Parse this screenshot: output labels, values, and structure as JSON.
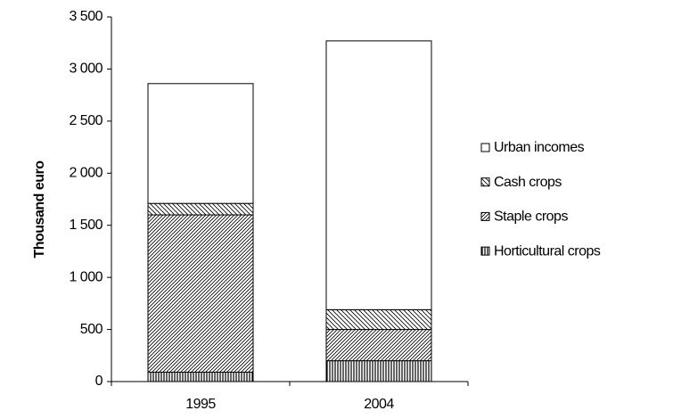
{
  "chart_data": {
    "type": "stacked-bar",
    "y_label": "Thousand euro",
    "categories": [
      "1995",
      "2004"
    ],
    "series": [
      {
        "name": "Horticultural crops",
        "color": "#000000",
        "pattern": "vertical",
        "values": [
          90,
          200
        ]
      },
      {
        "name": "Staple crops",
        "color": "#000000",
        "pattern": "diagonal-up",
        "values": [
          1510,
          300
        ]
      },
      {
        "name": "Cash crops",
        "color": "#000000",
        "pattern": "diagonal-down",
        "values": [
          110,
          190
        ]
      },
      {
        "name": "Urban incomes",
        "color": "#000000",
        "pattern": "none",
        "values": [
          1150,
          2580
        ]
      }
    ],
    "ylim": [
      0,
      3500
    ],
    "yticks": [
      0,
      500,
      {
        "value": 1000,
        "label": "1 000"
      },
      {
        "value": 1500,
        "label": "1 500"
      },
      {
        "value": 2000,
        "label": "2 000"
      },
      {
        "value": 2500,
        "label": "2 500"
      },
      {
        "value": 3000,
        "label": "3 000"
      },
      {
        "value": 3500,
        "label": "3 500"
      }
    ],
    "grid": false,
    "legend": "right"
  }
}
